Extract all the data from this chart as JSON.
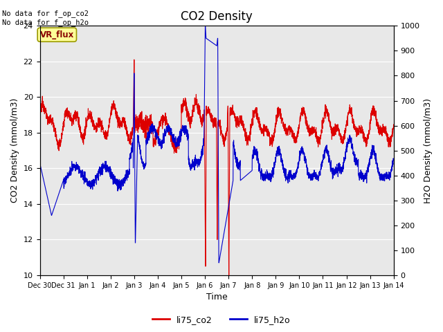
{
  "title": "CO2 Density",
  "xlabel": "Time",
  "ylabel_left": "CO2 Density (mmol/m3)",
  "ylabel_right": "H2O Density (mmol/m3)",
  "legend_labels": [
    "li75_co2",
    "li75_h2o"
  ],
  "legend_colors": [
    "#dd0000",
    "#0000cc"
  ],
  "annotation_text": "No data for f_op_co2\nNo data for f_op_h2o",
  "box_label": "VR_flux",
  "box_facecolor": "#ffff99",
  "box_edgecolor": "#999900",
  "box_textcolor": "#880000",
  "ylim_left": [
    10,
    24
  ],
  "ylim_right": [
    0,
    1000
  ],
  "background_color": "#e8e8e8",
  "co2_color": "#dd0000",
  "h2o_color": "#0000cc",
  "xtick_labels": [
    "Dec 30",
    "Dec 31",
    "Jan 1",
    "Jan 2",
    "Jan 3",
    "Jan 4",
    "Jan 5",
    "Jan 6",
    "Jan 7",
    "Jan 8",
    "Jan 9",
    "Jan 10",
    "Jan 11",
    "Jan 12",
    "Jan 13",
    "Jan 14"
  ],
  "yticks_left": [
    10,
    12,
    14,
    16,
    18,
    20,
    22,
    24
  ],
  "yticks_right": [
    0,
    100,
    200,
    300,
    400,
    500,
    600,
    700,
    800,
    900,
    1000
  ],
  "figsize": [
    6.4,
    4.8
  ],
  "dpi": 100
}
